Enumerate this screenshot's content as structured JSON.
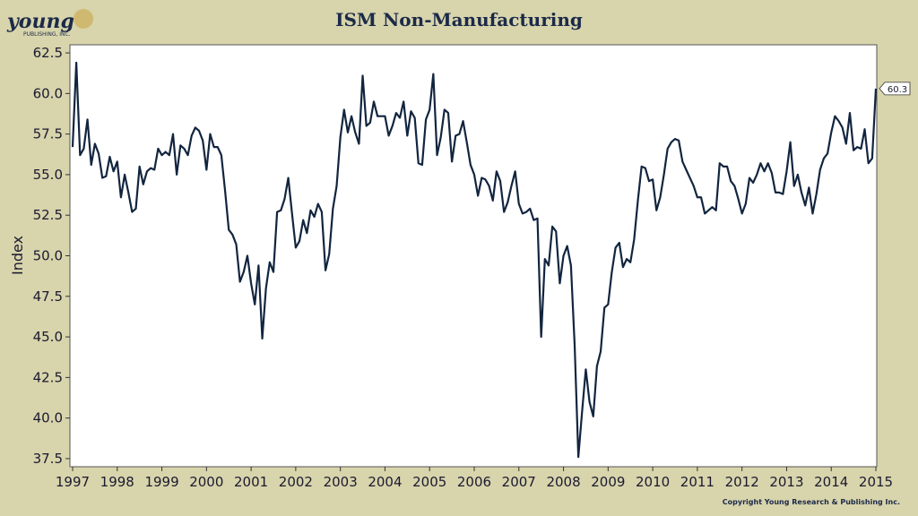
{
  "chart_data": {
    "type": "line",
    "title": "ISM Non-Manufacturing",
    "y_label": "Index",
    "logo": "young",
    "logo_sub": "PUBLISHING, INC.",
    "copyright": "Copyright Young Research & Publishing Inc.",
    "xlim": [
      1996.94,
      2015.02
    ],
    "ylim": [
      37,
      63
    ],
    "xticks": [
      1997,
      1998,
      1999,
      2000,
      2001,
      2002,
      2003,
      2004,
      2005,
      2006,
      2007,
      2008,
      2009,
      2010,
      2011,
      2012,
      2013,
      2014,
      2015
    ],
    "yticks": [
      37.5,
      {
        "value": 40,
        "label": "40.0"
      },
      42.5,
      {
        "value": 45,
        "label": "45.0"
      },
      47.5,
      {
        "value": 50,
        "label": "50.0"
      },
      52.5,
      {
        "value": 55,
        "label": "55.0"
      },
      57.5,
      {
        "value": 60,
        "label": "60.0"
      },
      62.5
    ],
    "grid": false,
    "x": [
      1997,
      1997.083,
      1997.167,
      1997.25,
      1997.333,
      1997.417,
      1997.5,
      1997.583,
      1997.667,
      1997.75,
      1997.833,
      1997.917,
      1998,
      1998.083,
      1998.167,
      1998.25,
      1998.333,
      1998.417,
      1998.5,
      1998.583,
      1998.667,
      1998.75,
      1998.833,
      1998.917,
      1999,
      1999.083,
      1999.167,
      1999.25,
      1999.333,
      1999.417,
      1999.5,
      1999.583,
      1999.667,
      1999.75,
      1999.833,
      1999.917,
      2000,
      2000.083,
      2000.167,
      2000.25,
      2000.333,
      2000.417,
      2000.5,
      2000.583,
      2000.667,
      2000.75,
      2000.833,
      2000.917,
      2001,
      2001.083,
      2001.167,
      2001.25,
      2001.333,
      2001.417,
      2001.5,
      2001.583,
      2001.667,
      2001.75,
      2001.833,
      2001.917,
      2002,
      2002.083,
      2002.167,
      2002.25,
      2002.333,
      2002.417,
      2002.5,
      2002.583,
      2002.667,
      2002.75,
      2002.833,
      2002.917,
      2003,
      2003.083,
      2003.167,
      2003.25,
      2003.333,
      2003.417,
      2003.5,
      2003.583,
      2003.667,
      2003.75,
      2003.833,
      2003.917,
      2004,
      2004.083,
      2004.167,
      2004.25,
      2004.333,
      2004.417,
      2004.5,
      2004.583,
      2004.667,
      2004.75,
      2004.833,
      2004.917,
      2005,
      2005.083,
      2005.167,
      2005.25,
      2005.333,
      2005.417,
      2005.5,
      2005.583,
      2005.667,
      2005.75,
      2005.833,
      2005.917,
      2006,
      2006.083,
      2006.167,
      2006.25,
      2006.333,
      2006.417,
      2006.5,
      2006.583,
      2006.667,
      2006.75,
      2006.833,
      2006.917,
      2007,
      2007.083,
      2007.167,
      2007.25,
      2007.333,
      2007.417,
      2007.5,
      2007.583,
      2007.667,
      2007.75,
      2007.833,
      2007.917,
      2008,
      2008.083,
      2008.167,
      2008.25,
      2008.333,
      2008.417,
      2008.5,
      2008.583,
      2008.667,
      2008.75,
      2008.833,
      2008.917,
      2009,
      2009.083,
      2009.167,
      2009.25,
      2009.333,
      2009.417,
      2009.5,
      2009.583,
      2009.667,
      2009.75,
      2009.833,
      2009.917,
      2010,
      2010.083,
      2010.167,
      2010.25,
      2010.333,
      2010.417,
      2010.5,
      2010.583,
      2010.667,
      2010.75,
      2010.833,
      2010.917,
      2011,
      2011.083,
      2011.167,
      2011.25,
      2011.333,
      2011.417,
      2011.5,
      2011.583,
      2011.667,
      2011.75,
      2011.833,
      2011.917,
      2012,
      2012.083,
      2012.167,
      2012.25,
      2012.333,
      2012.417,
      2012.5,
      2012.583,
      2012.667,
      2012.75,
      2012.833,
      2012.917,
      2013,
      2013.083,
      2013.167,
      2013.25,
      2013.333,
      2013.417,
      2013.5,
      2013.583,
      2013.667,
      2013.75,
      2013.833,
      2013.917,
      2014,
      2014.083,
      2014.167,
      2014.25,
      2014.333,
      2014.417,
      2014.5,
      2014.583,
      2014.667,
      2014.75,
      2014.833,
      2014.917,
      2015
    ],
    "series": [
      {
        "color": "#12253f",
        "values": [
          56.7,
          61.9,
          56.2,
          56.6,
          58.4,
          55.6,
          56.9,
          56.3,
          54.8,
          54.9,
          56.1,
          55.2,
          55.8,
          53.6,
          55.0,
          53.9,
          52.7,
          52.9,
          55.5,
          54.4,
          55.2,
          55.4,
          55.3,
          56.6,
          56.2,
          56.4,
          56.2,
          57.5,
          55.0,
          56.8,
          56.6,
          56.2,
          57.4,
          57.9,
          57.7,
          57.1,
          55.3,
          57.5,
          56.7,
          56.7,
          56.2,
          54.0,
          51.6,
          51.3,
          50.7,
          48.4,
          49.0,
          50.0,
          48.3,
          47.0,
          49.4,
          44.9,
          48.0,
          49.6,
          49.0,
          52.7,
          52.8,
          53.5,
          54.8,
          52.6,
          50.5,
          50.9,
          52.2,
          51.4,
          52.8,
          52.4,
          53.2,
          52.7,
          49.1,
          50.1,
          52.9,
          54.3,
          57.3,
          59.0,
          57.6,
          58.6,
          57.6,
          56.9,
          61.1,
          58.0,
          58.2,
          59.5,
          58.6,
          58.6,
          58.6,
          57.4,
          58.0,
          58.8,
          58.5,
          59.5,
          57.4,
          58.9,
          58.5,
          55.7,
          55.6,
          58.4,
          59.0,
          61.2,
          56.2,
          57.3,
          59.0,
          58.8,
          55.8,
          57.4,
          57.5,
          58.3,
          57.0,
          55.6,
          55.0,
          53.7,
          54.8,
          54.7,
          54.3,
          53.4,
          55.2,
          54.6,
          52.7,
          53.3,
          54.3,
          55.2,
          53.2,
          52.6,
          52.7,
          52.9,
          52.2,
          52.3,
          45.0,
          49.8,
          49.4,
          51.8,
          51.5,
          48.3,
          50.0,
          50.6,
          49.4,
          44.5,
          37.6,
          40.4,
          43.0,
          41.0,
          40.1,
          43.2,
          44.1,
          46.8,
          47.0,
          49.0,
          50.5,
          50.8,
          49.3,
          49.8,
          49.6,
          51.0,
          53.4,
          55.5,
          55.4,
          54.6,
          54.7,
          52.8,
          53.6,
          55.0,
          56.6,
          57.0,
          57.2,
          57.1,
          55.8,
          55.3,
          54.8,
          54.3,
          53.6,
          53.6,
          52.6,
          52.8,
          53.0,
          52.8,
          55.7,
          55.5,
          55.5,
          54.6,
          54.3,
          53.5,
          52.6,
          53.2,
          54.8,
          54.5,
          55.0,
          55.7,
          55.2,
          55.7,
          55.1,
          53.9,
          53.9,
          53.8,
          55.2,
          57.0,
          54.3,
          55.0,
          53.9,
          53.1,
          54.2,
          52.6,
          53.8,
          55.3,
          56.0,
          56.3,
          57.6,
          58.6,
          58.3,
          57.9,
          56.9,
          58.8,
          56.5,
          56.7,
          56.6,
          57.8,
          55.7,
          56.0,
          60.3
        ]
      }
    ]
  }
}
